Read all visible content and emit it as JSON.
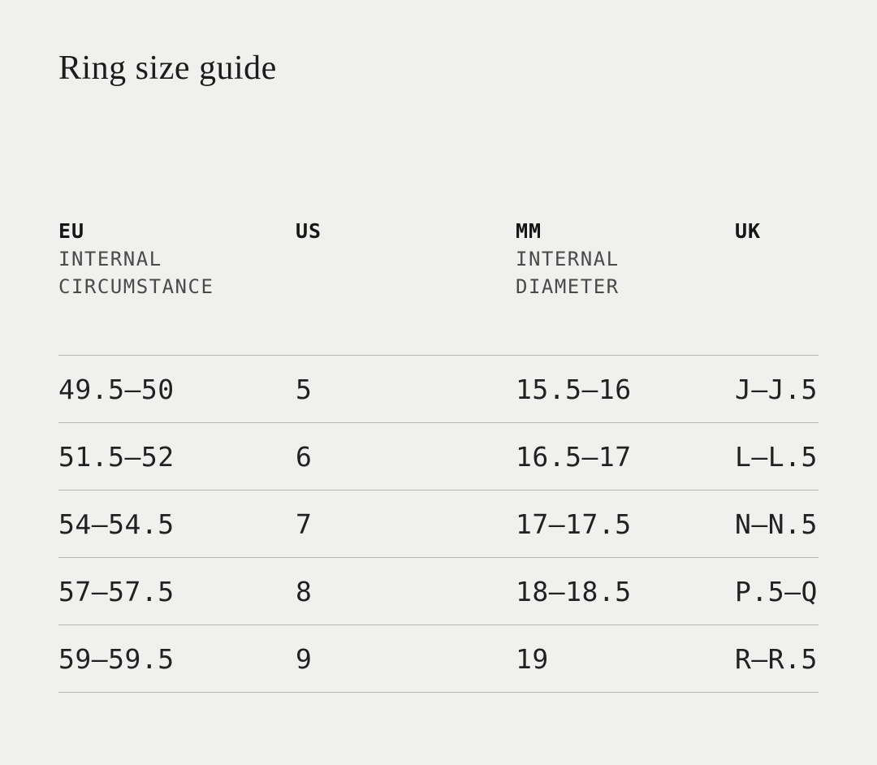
{
  "page": {
    "title": "Ring size guide",
    "background_color": "#f0f0ee",
    "text_color": "#212121",
    "divider_color": "#b5b5b3"
  },
  "table": {
    "headers": [
      {
        "code": "EU",
        "sub1": "INTERNAL",
        "sub2": "CIRCUMSTANCE"
      },
      {
        "code": "US",
        "sub1": "",
        "sub2": ""
      },
      {
        "code": "MM",
        "sub1": "INTERNAL",
        "sub2": "DIAMETER"
      },
      {
        "code": "UK",
        "sub1": "",
        "sub2": ""
      }
    ],
    "rows": [
      {
        "eu": "49.5—50",
        "us": "5",
        "mm": "15.5—16",
        "uk": "J—J.5"
      },
      {
        "eu": "51.5—52",
        "us": "6",
        "mm": "16.5—17",
        "uk": "L—L.5"
      },
      {
        "eu": "54—54.5",
        "us": "7",
        "mm": "17—17.5",
        "uk": "N—N.5"
      },
      {
        "eu": "57—57.5",
        "us": "8",
        "mm": "18—18.5",
        "uk": "P.5—Q"
      },
      {
        "eu": "59—59.5",
        "us": "9",
        "mm": "19",
        "uk": "R—R.5"
      }
    ]
  }
}
